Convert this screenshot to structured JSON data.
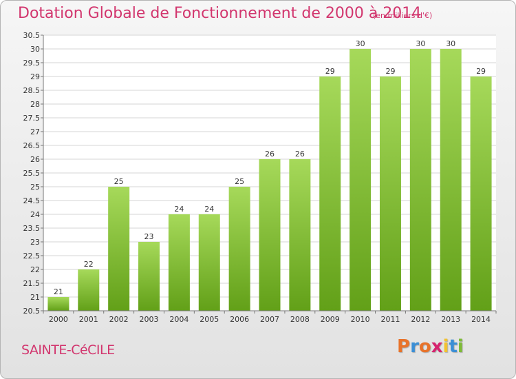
{
  "header": {
    "title": "Dotation Globale de Fonctionnement de 2000 à 2014",
    "subtitle": "(en milliers d'€)"
  },
  "commune": "SAINTE-CéCILE",
  "logo": {
    "text": "Proxiti",
    "colors": [
      "#e8732a",
      "#3b8fd6",
      "#e8732a",
      "#d6236e",
      "#f2c230",
      "#3b8fd6",
      "#7dbb36"
    ]
  },
  "chart_data": {
    "type": "bar",
    "categories": [
      "2000",
      "2001",
      "2002",
      "2003",
      "2004",
      "2005",
      "2006",
      "2007",
      "2008",
      "2009",
      "2010",
      "2011",
      "2012",
      "2013",
      "2014"
    ],
    "values": [
      21,
      22,
      25,
      23,
      24,
      24,
      25,
      26,
      26,
      29,
      30,
      29,
      30,
      30,
      29
    ],
    "value_labels": [
      "21",
      "22",
      "25",
      "23",
      "24",
      "24",
      "25",
      "26",
      "26",
      "29",
      "30",
      "29",
      "30",
      "30",
      "29"
    ],
    "title": "Dotation Globale de Fonctionnement de 2000 à 2014",
    "xlabel": "",
    "ylabel": "",
    "ylim": [
      20.5,
      30.5
    ],
    "yticks": [
      20.5,
      21,
      21.5,
      22,
      22.5,
      23,
      23.5,
      24,
      24.5,
      25,
      25.5,
      26,
      26.5,
      27,
      27.5,
      28,
      28.5,
      29,
      29.5,
      30,
      30.5
    ],
    "ytick_labels": [
      "20.5",
      "21",
      "21.5",
      "22",
      "22.5",
      "23",
      "23.5",
      "24",
      "24.5",
      "25",
      "25.5",
      "26",
      "26.5",
      "27",
      "27.5",
      "28",
      "28.5",
      "29",
      "29.5",
      "30",
      "30.5"
    ],
    "grid": true,
    "bar_color_top": "#a6d95a",
    "bar_color_bottom": "#62a018"
  }
}
